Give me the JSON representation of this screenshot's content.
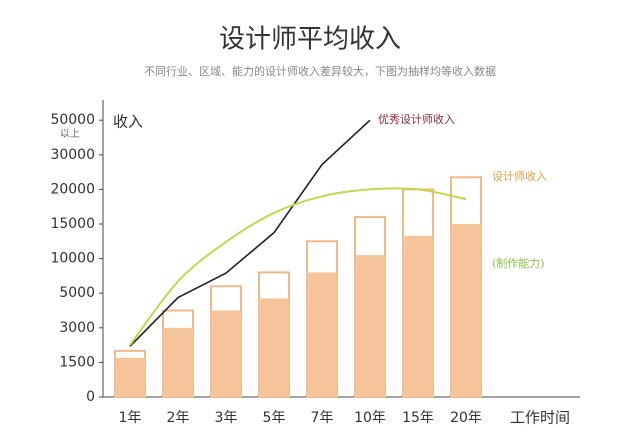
{
  "chart_data": {
    "type": "bar",
    "title": "设计师平均收入",
    "subtitle": "不同行业、区域、能力的设计师收入差异较大，下图为抽样均等收入数据",
    "y_label": "收入",
    "y_label_note": "以上",
    "x_label": "工作时间",
    "categories": [
      "1年",
      "2年",
      "3年",
      "5年",
      "7年",
      "10年",
      "15年",
      "20年"
    ],
    "series": [
      {
        "color": "#f0b98a",
        "values": [
          2000,
          4000,
          6000,
          8000,
          12500,
          16000,
          20000,
          23500
        ]
      },
      {
        "color": "#f6c49a",
        "values": [
          1700,
          3000,
          4000,
          4700,
          8000,
          10500,
          13300,
          15000
        ]
      }
    ],
    "lines": [
      {
        "name": "优秀设计师收入",
        "color": "#222222",
        "label_color": "#8b2a3a",
        "values": [
          2200,
          4750,
          7900,
          13750,
          27200,
          50000,
          null,
          null
        ]
      },
      {
        "name": "设计师收入",
        "color": "#c8d44a",
        "label_color": "#e0a040",
        "values": [
          2250,
          6700,
          12400,
          16600,
          19000,
          20000,
          20000,
          18600
        ]
      }
    ],
    "annotation": "(制作能力)",
    "yticks": [
      0,
      1500,
      3000,
      5000,
      10000,
      15000,
      20000,
      30000,
      50000
    ],
    "ylim": [
      0,
      50000
    ]
  }
}
